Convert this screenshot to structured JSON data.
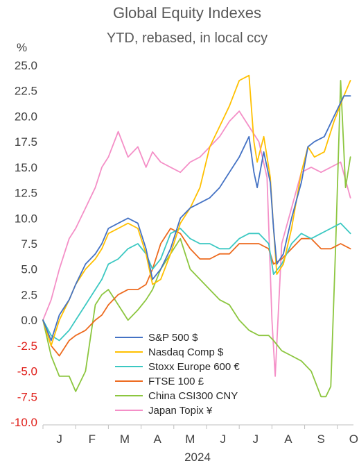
{
  "chart_data": {
    "type": "line",
    "title": "Global Equity Indexes",
    "subtitle": "YTD, rebased, in local ccy",
    "ylabel": "%",
    "xlabel": "2024",
    "ylim": [
      -10,
      25
    ],
    "yticks": [
      {
        "value": 25,
        "label": "25.0"
      },
      {
        "value": 22.5,
        "label": "22.5"
      },
      {
        "value": 20,
        "label": "20.0"
      },
      {
        "value": 17.5,
        "label": "17.5"
      },
      {
        "value": 15,
        "label": "15.0"
      },
      {
        "value": 12.5,
        "label": "12.5"
      },
      {
        "value": 10,
        "label": "10.0"
      },
      {
        "value": 7.5,
        "label": "7.5"
      },
      {
        "value": 5,
        "label": "5.0"
      },
      {
        "value": 2.5,
        "label": "2.5"
      },
      {
        "value": 0,
        "label": "0.0"
      },
      {
        "value": -2.5,
        "label": "-2.5"
      },
      {
        "value": -5,
        "label": "-5.0"
      },
      {
        "value": -7.5,
        "label": "-7.5"
      },
      {
        "value": -10,
        "label": "-10.0"
      }
    ],
    "months": [
      "J",
      "F",
      "M",
      "A",
      "M",
      "J",
      "J",
      "A",
      "S",
      "O"
    ],
    "grid": false,
    "legend_position": "bottom-center",
    "colors": {
      "positive_tick": "#404040",
      "negative_tick": "#e0201b"
    },
    "x_unit": "months since Jan 1, 2024",
    "series": [
      {
        "name": "S&P 500 $",
        "color": "#4472c4",
        "x": [
          0,
          0.25,
          0.5,
          0.8,
          1.0,
          1.3,
          1.6,
          1.8,
          2.0,
          2.3,
          2.6,
          2.9,
          3.15,
          3.35,
          3.6,
          3.9,
          4.2,
          4.5,
          4.8,
          5.1,
          5.4,
          5.7,
          6.0,
          6.3,
          6.45,
          6.55,
          6.75,
          6.95,
          7.05,
          7.15,
          7.35,
          7.6,
          7.9,
          8.1,
          8.3,
          8.6,
          8.9,
          9.2,
          9.4
        ],
        "values": [
          0,
          -2,
          0.5,
          2,
          3.5,
          5.5,
          6.5,
          7.5,
          9,
          9.5,
          10,
          9.5,
          7,
          4,
          5,
          7,
          10,
          11,
          11.5,
          12,
          13,
          14.5,
          16,
          18,
          14.5,
          13,
          16.5,
          13.5,
          9,
          5.5,
          6.5,
          10,
          13.5,
          17,
          17.5,
          18,
          20,
          22,
          22
        ]
      },
      {
        "name": "Nasdaq Comp $",
        "color": "#ffc000",
        "x": [
          0,
          0.25,
          0.5,
          0.8,
          1.0,
          1.3,
          1.6,
          1.8,
          2.0,
          2.3,
          2.6,
          2.9,
          3.15,
          3.35,
          3.6,
          3.9,
          4.2,
          4.5,
          4.8,
          5.1,
          5.4,
          5.7,
          6.0,
          6.3,
          6.45,
          6.55,
          6.75,
          6.95,
          7.05,
          7.15,
          7.35,
          7.6,
          7.9,
          8.1,
          8.3,
          8.6,
          8.9,
          9.2,
          9.4
        ],
        "values": [
          0,
          -2.5,
          0,
          2,
          3.5,
          5,
          6,
          7,
          8.5,
          9,
          9.5,
          9,
          6.5,
          3.5,
          4,
          6.5,
          9.5,
          11,
          13,
          17,
          19,
          21,
          23.5,
          24,
          17.5,
          15.5,
          18,
          14,
          9,
          4.5,
          5.5,
          9,
          14.5,
          17,
          16,
          16.5,
          19.5,
          22,
          23.5
        ]
      },
      {
        "name": "Stoxx Europe 600 €",
        "color": "#3bc8c2",
        "x": [
          0,
          0.25,
          0.5,
          0.8,
          1.0,
          1.3,
          1.6,
          1.8,
          2.0,
          2.3,
          2.6,
          2.9,
          3.15,
          3.35,
          3.6,
          3.9,
          4.2,
          4.5,
          4.8,
          5.1,
          5.4,
          5.7,
          6.0,
          6.3,
          6.6,
          6.9,
          7.05,
          7.3,
          7.6,
          7.9,
          8.2,
          8.5,
          8.8,
          9.1,
          9.4
        ],
        "values": [
          0,
          -1.5,
          -2,
          -1,
          0,
          1.5,
          3,
          4,
          5.5,
          6,
          7,
          7.5,
          6.5,
          5,
          6,
          8.5,
          9,
          8,
          7.5,
          7.5,
          7,
          7,
          8,
          8.5,
          8.5,
          7.5,
          4.5,
          5.5,
          7.5,
          8.5,
          8,
          8.5,
          9,
          9.5,
          8.5
        ]
      },
      {
        "name": "FTSE 100 £",
        "color": "#ed6a1e",
        "x": [
          0,
          0.25,
          0.5,
          0.8,
          1.0,
          1.3,
          1.6,
          1.8,
          2.0,
          2.3,
          2.6,
          2.9,
          3.15,
          3.35,
          3.6,
          3.9,
          4.2,
          4.5,
          4.8,
          5.1,
          5.4,
          5.7,
          6.0,
          6.3,
          6.6,
          6.9,
          7.05,
          7.3,
          7.6,
          7.9,
          8.2,
          8.5,
          8.8,
          9.1,
          9.4
        ],
        "values": [
          0,
          -2.5,
          -3.5,
          -2,
          -1.5,
          -1,
          0,
          0.5,
          1.5,
          2.5,
          3,
          3,
          3.5,
          5,
          7.5,
          9,
          8.5,
          7,
          6,
          6,
          6.5,
          6.5,
          7.5,
          7.5,
          7.5,
          7,
          5.5,
          6,
          7,
          8,
          8,
          7,
          7,
          7.5,
          7
        ]
      },
      {
        "name": "China CSI300 CNY",
        "color": "#8cc63f",
        "x": [
          0,
          0.25,
          0.5,
          0.8,
          1.0,
          1.3,
          1.6,
          1.8,
          2.0,
          2.3,
          2.6,
          2.9,
          3.15,
          3.35,
          3.6,
          3.9,
          4.2,
          4.5,
          4.8,
          5.1,
          5.4,
          5.7,
          6.0,
          6.3,
          6.6,
          6.9,
          7.05,
          7.3,
          7.6,
          7.9,
          8.2,
          8.5,
          8.65,
          8.8,
          8.95,
          9.1,
          9.25,
          9.4
        ],
        "values": [
          0,
          -3.5,
          -5.5,
          -5.5,
          -7,
          -5,
          1.5,
          2.5,
          3,
          1.5,
          0,
          1,
          2,
          3,
          5,
          6.5,
          8,
          5,
          4,
          3,
          2,
          1.5,
          0,
          -1,
          -1.5,
          -1.5,
          -2,
          -3,
          -3.5,
          -4,
          -5,
          -7.5,
          -7.5,
          -6.5,
          7.5,
          23.5,
          13,
          16
        ]
      },
      {
        "name": "Japan Topix ¥",
        "color": "#f48fc7",
        "x": [
          0,
          0.25,
          0.5,
          0.8,
          1.0,
          1.3,
          1.6,
          1.8,
          2.0,
          2.3,
          2.6,
          2.9,
          3.15,
          3.35,
          3.6,
          3.9,
          4.2,
          4.5,
          4.8,
          5.1,
          5.4,
          5.7,
          6.0,
          6.3,
          6.6,
          6.85,
          7.0,
          7.1,
          7.3,
          7.6,
          7.9,
          8.2,
          8.5,
          8.8,
          9.1,
          9.4
        ],
        "values": [
          0,
          2,
          5,
          8,
          9,
          11,
          13,
          15,
          16,
          18.5,
          16,
          17,
          15,
          16.5,
          15.5,
          15,
          14.5,
          15.5,
          16,
          17,
          18,
          19.5,
          20.5,
          19,
          17.5,
          14,
          0,
          -5.5,
          7.5,
          11,
          14.5,
          15,
          14.5,
          15,
          15.5,
          12
        ]
      }
    ]
  }
}
